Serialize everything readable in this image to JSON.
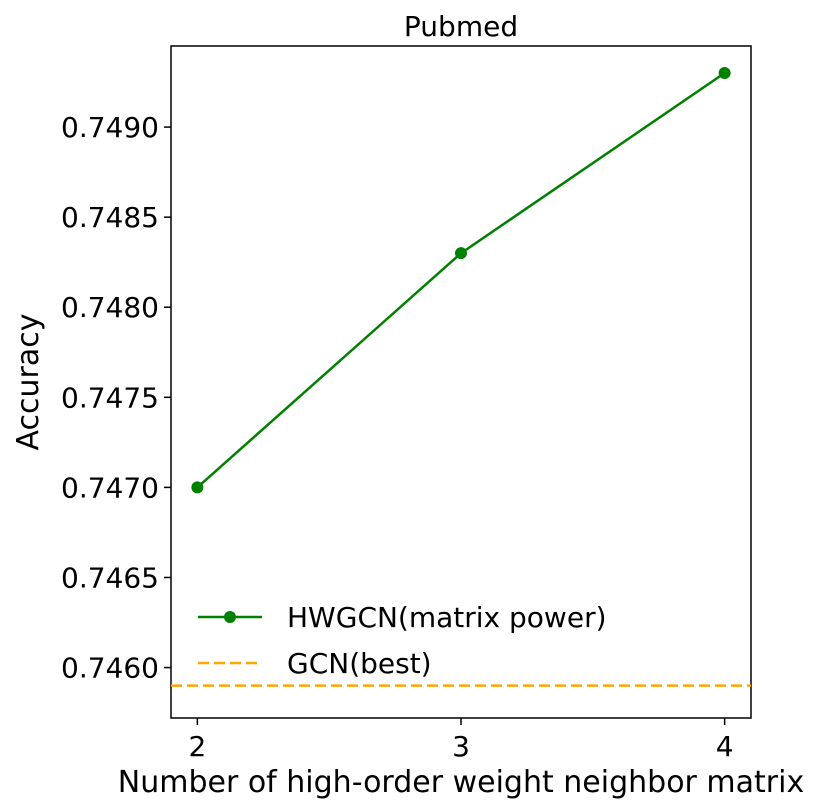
{
  "chart_data": {
    "type": "line",
    "title": "Pubmed",
    "xlabel": "Number of high-order weight neighbor matrix",
    "ylabel": "Accuracy",
    "x": [
      2,
      3,
      4
    ],
    "xticks": [
      "2",
      "3",
      "4"
    ],
    "yticks": [
      "0.7460",
      "0.7465",
      "0.7470",
      "0.7475",
      "0.7480",
      "0.7485",
      "0.7490"
    ],
    "ytick_values": [
      0.746,
      0.7465,
      0.747,
      0.7475,
      0.748,
      0.7485,
      0.749
    ],
    "xlim": [
      1.9,
      4.1
    ],
    "ylim": [
      0.74572,
      0.74945
    ],
    "grid": false,
    "legend_position": "lower-left",
    "series": [
      {
        "name": "HWGCN(matrix power)",
        "style": "line-marker",
        "color": "#008000",
        "values": [
          0.747,
          0.7483,
          0.7493
        ]
      },
      {
        "name": "GCN(best)",
        "style": "dashed-horizontal",
        "color": "#ffa500",
        "value": 0.7459
      }
    ]
  }
}
